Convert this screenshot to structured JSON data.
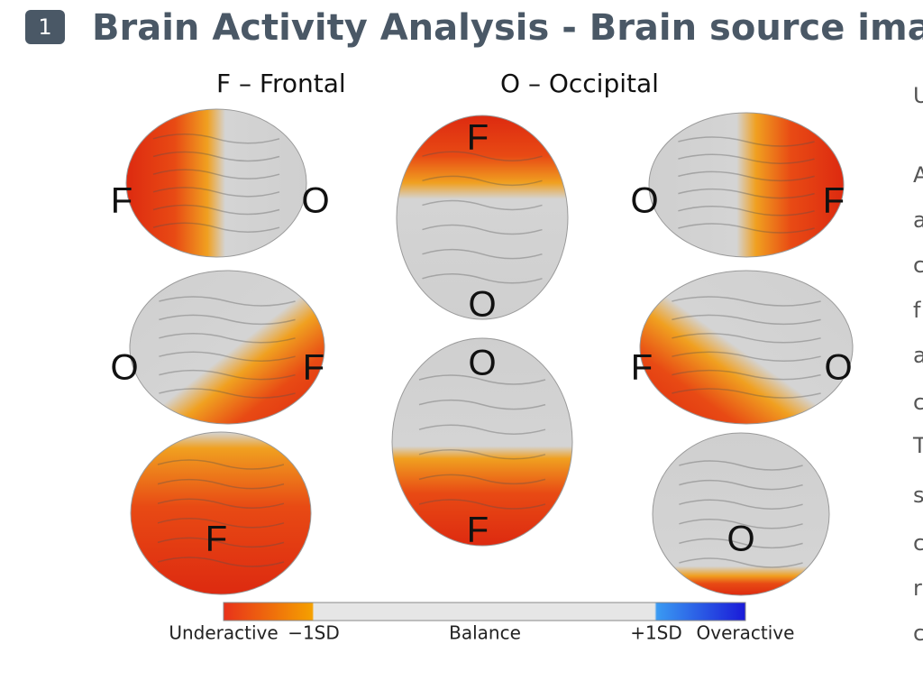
{
  "badge": "1",
  "title": "Brain Activity Analysis - Brain source image",
  "legend_labels": [
    "F – Frontal",
    "O – Occipital"
  ],
  "views": [
    {
      "labels": [
        "F",
        "O"
      ]
    },
    {
      "labels": [
        "F",
        "O"
      ]
    },
    {
      "labels": [
        "O",
        "F"
      ]
    },
    {
      "labels": [
        "O",
        "F"
      ]
    },
    {
      "labels": [
        "O",
        "F"
      ]
    },
    {
      "labels": [
        "F",
        "O"
      ]
    },
    {
      "labels": [
        "F"
      ]
    },
    {
      "labels": [
        "O"
      ]
    }
  ],
  "colorbar": {
    "labels": [
      "Underactive",
      "−1SD",
      "Balance",
      "+1SD",
      "Overactive"
    ]
  },
  "side_text": [
    "U",
    "A",
    "a",
    "c",
    "f",
    "a",
    "c",
    "T",
    "s",
    "c",
    "r",
    "c"
  ]
}
